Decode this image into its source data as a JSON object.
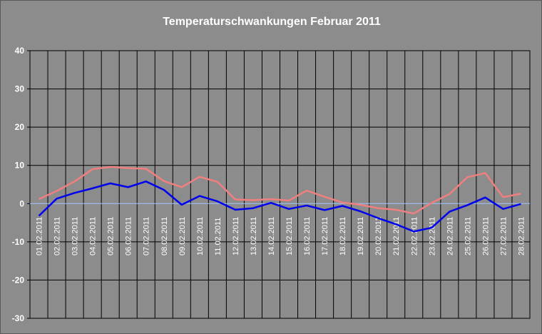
{
  "chart_data": {
    "type": "line",
    "title": "Temperaturschwankungen Februar 2011",
    "xlabel": "",
    "ylabel": "",
    "ylim": [
      -30,
      40
    ],
    "yticks": [
      40,
      30,
      20,
      10,
      0,
      -10,
      -20,
      -30
    ],
    "grid": true,
    "legend": "none",
    "categories": [
      "01.02.2011",
      "02.02.2011",
      "03.02.2011",
      "04.02.2011",
      "05.02.2011",
      "06.02.2011",
      "07.02.2011",
      "08.02.2011",
      "09.02.2011",
      "10.02.2011",
      "11.02.2011",
      "12.02.2011",
      "13.02.2011",
      "14.02.2011",
      "15.02.2011",
      "16.02.2011",
      "17.02.2011",
      "18.02.2011",
      "19.02.2011",
      "20.02.2011",
      "21.02.2011",
      "22.02.2011",
      "23.02.2011",
      "24.02.2011",
      "25.02.2011",
      "26.02.2011",
      "27.02.2011",
      "28.02.2011"
    ],
    "series": [
      {
        "color": "#f08080",
        "values": [
          1.2,
          3.3,
          5.8,
          9.0,
          9.6,
          9.3,
          9.1,
          5.9,
          4.3,
          7.0,
          5.7,
          1.1,
          0.9,
          1.2,
          0.8,
          3.4,
          1.8,
          0.3,
          -0.3,
          -1.2,
          -1.6,
          -2.6,
          0.2,
          2.5,
          6.9,
          8.0,
          1.7,
          2.6
        ]
      },
      {
        "color": "#0000ee",
        "values": [
          -3.2,
          1.3,
          2.8,
          4.0,
          5.3,
          4.3,
          5.8,
          3.6,
          -0.3,
          2.0,
          0.6,
          -1.6,
          -1.2,
          0.2,
          -1.4,
          -0.5,
          -1.7,
          -0.6,
          -2.0,
          -3.8,
          -5.4,
          -7.3,
          -6.3,
          -2.1,
          -0.4,
          1.6,
          -1.4,
          -0.1
        ]
      }
    ]
  }
}
